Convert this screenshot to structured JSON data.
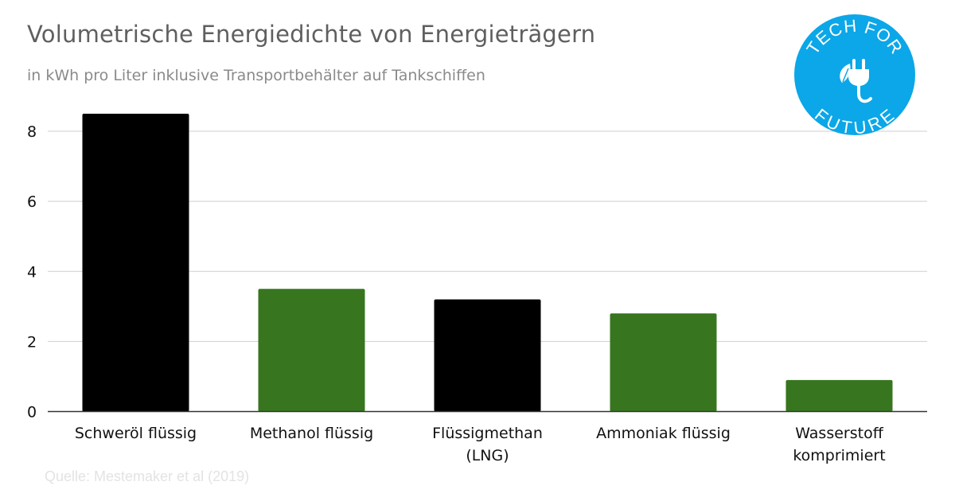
{
  "chart_data": {
    "type": "bar",
    "title": "Volumetrische Energiedichte von Energieträgern",
    "subtitle": "in kWh pro Liter inklusive Transportbehälter auf Tankschiffen",
    "source": "Quelle: Mestemaker et al (2019)",
    "xlabel": "",
    "ylabel": "",
    "ylim": [
      0,
      9
    ],
    "yticks": [
      0,
      2,
      4,
      6,
      8
    ],
    "grid": true,
    "legend": "none",
    "categories": [
      [
        "Schweröl flüssig"
      ],
      [
        "Methanol flüssig"
      ],
      [
        "Flüssigmethan",
        "(LNG)"
      ],
      [
        "Ammoniak flüssig"
      ],
      [
        "Wasserstoff",
        "komprimiert"
      ]
    ],
    "values": [
      8.5,
      3.5,
      3.2,
      2.8,
      0.9
    ],
    "bar_colors": [
      "#000000",
      "#37761f",
      "#000000",
      "#37761f",
      "#37761f"
    ]
  },
  "logo": {
    "top_text": "TECH FOR",
    "bottom_text": "FUTURE",
    "color": "#0ba7e8",
    "icon": "plug-leaf-icon"
  }
}
